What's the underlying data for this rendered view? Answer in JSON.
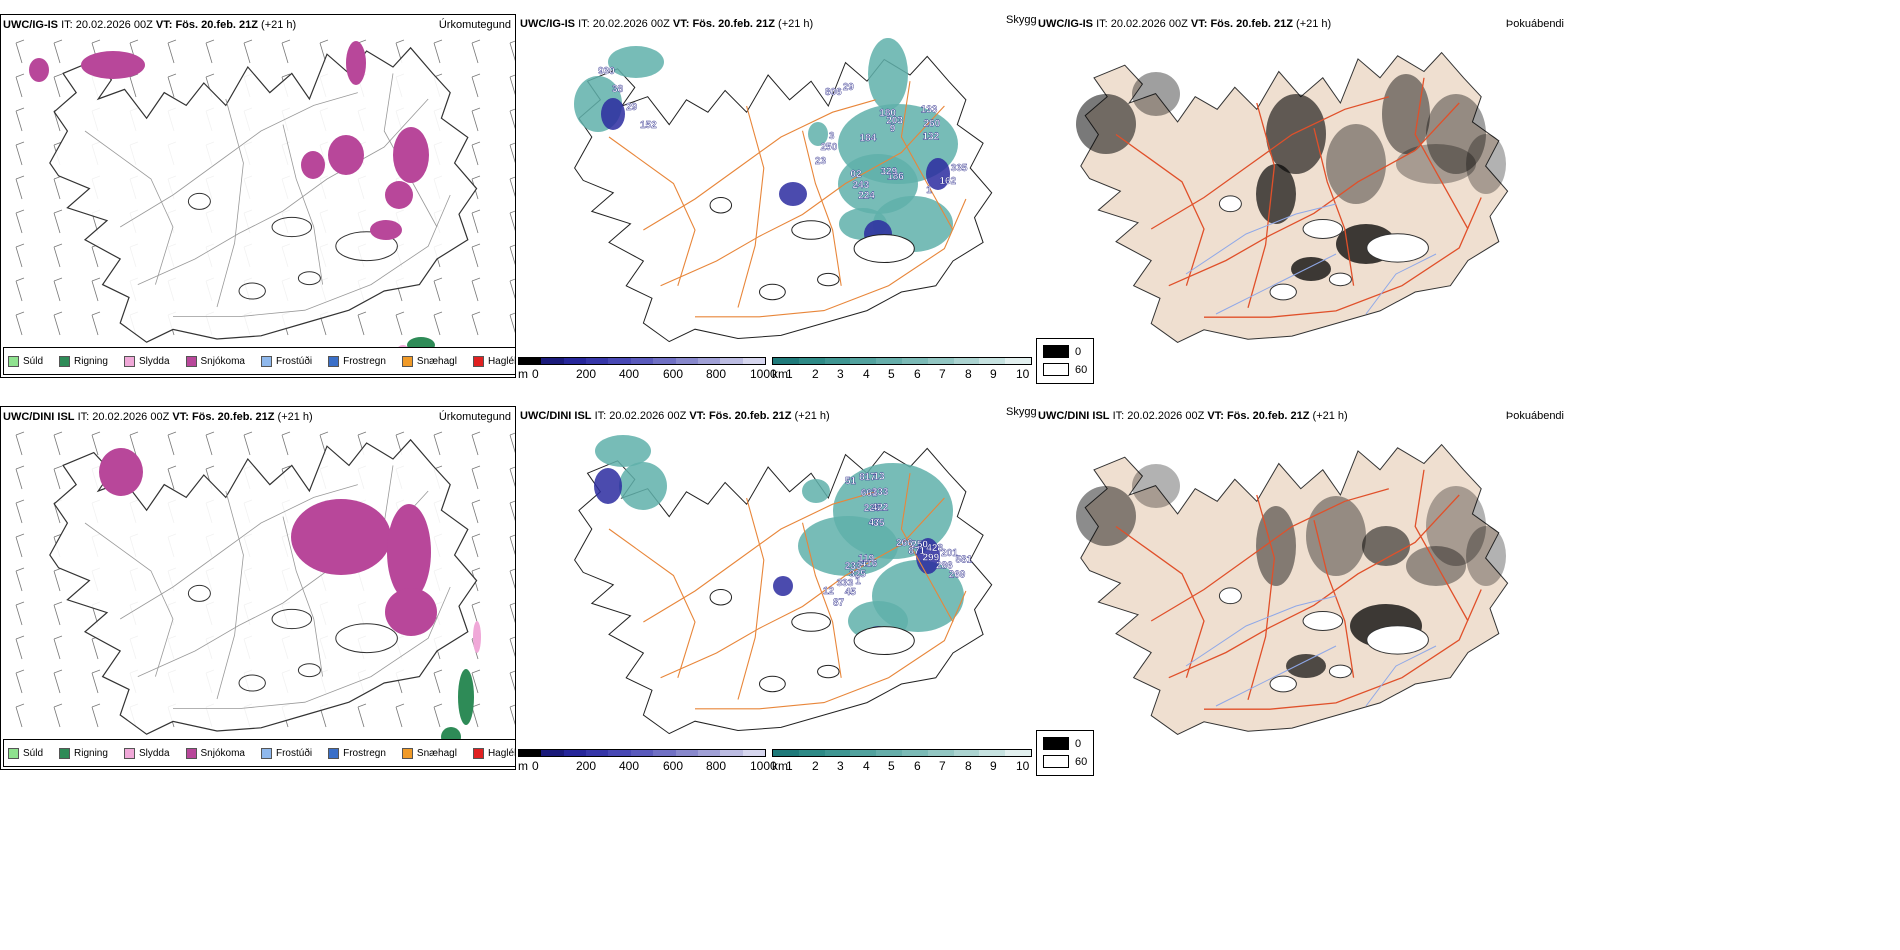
{
  "rows": [
    {
      "model": "UWC/IG-IS",
      "it_label": "IT:",
      "it_value": "20.02.2026 00Z",
      "vt_label": "VT:",
      "vt_value": "Fös. 20.feb. 21Z",
      "lead": "(+21 h)",
      "titles": {
        "precip": "Úrkomutegund",
        "ceiling": "Skyggni",
        "fog": "Þokuábendi"
      },
      "ceiling_labels": [
        "930",
        "38",
        "29",
        "152",
        "133",
        "184",
        "224",
        "335",
        "180",
        "23",
        "186",
        "260",
        "806",
        "243",
        "162",
        "203",
        "250",
        "329",
        "132",
        "29",
        "02",
        "1",
        "9",
        "3"
      ],
      "precip_icons": [
        "snow-area-icon"
      ]
    },
    {
      "model": "UWC/DINI ISL",
      "it_label": "IT:",
      "it_value": "20.02.2026 00Z",
      "vt_label": "VT:",
      "vt_value": "Fös. 20.feb. 21Z",
      "lead": "(+21 h)",
      "titles": {
        "precip": "Úrkomutegund",
        "ceiling": "Skyggni",
        "fog": "Þokuábendi"
      },
      "ceiling_labels": [
        "266",
        "1",
        "51",
        "250",
        "45",
        "47",
        "428",
        "87",
        "226",
        "201",
        "416",
        "661",
        "581",
        "325",
        "817",
        "871",
        "333",
        "35",
        "299",
        "12",
        "422",
        "286",
        "119",
        "333",
        "269",
        "233",
        "13"
      ],
      "precip_icons": [
        "snow-area-icon"
      ]
    }
  ],
  "precip_legend": [
    {
      "label": "Súld",
      "color": "#8fe28f"
    },
    {
      "label": "Rigning",
      "color": "#2e8b57"
    },
    {
      "label": "Slydda",
      "color": "#f0a8d8"
    },
    {
      "label": "Snjókoma",
      "color": "#b8479a"
    },
    {
      "label": "Frostúði",
      "color": "#8fb8ec"
    },
    {
      "label": "Frostregn",
      "color": "#3a6fc8"
    },
    {
      "label": "Snæhagl",
      "color": "#f09a28"
    },
    {
      "label": "Haglél",
      "color": "#e02020"
    }
  ],
  "ceiling_scale": {
    "unit": "m",
    "ticks": [
      "0",
      "200",
      "400",
      "600",
      "800",
      "1000"
    ],
    "colors": [
      "#000000",
      "#1a1a7a",
      "#26269a",
      "#3636a8",
      "#4848b4",
      "#5a5abc",
      "#7070c4",
      "#8888cc",
      "#a0a0d6",
      "#bcbce2",
      "#d6d6ee"
    ]
  },
  "vis_scale": {
    "unit": "km",
    "ticks": [
      "1",
      "2",
      "3",
      "4",
      "5",
      "6",
      "7",
      "8",
      "9",
      "10"
    ],
    "colors": [
      "#1f7a7a",
      "#2e8a86",
      "#3f9692",
      "#52a29e",
      "#66aeaa",
      "#7bbab6",
      "#92c6c2",
      "#abd3d0",
      "#c6e2e0",
      "#e2f0ef"
    ]
  },
  "fog_key": {
    "high": "0",
    "low": "60"
  },
  "colors": {
    "snow": "#b8479a",
    "rain": "#2e8b57",
    "sleet": "#f0a8d8",
    "road": "#e8863a",
    "glacier": "#000000",
    "land_fog": "#efdfd0",
    "fog_road": "#e0502a",
    "fog_river": "#8fa8e8"
  }
}
